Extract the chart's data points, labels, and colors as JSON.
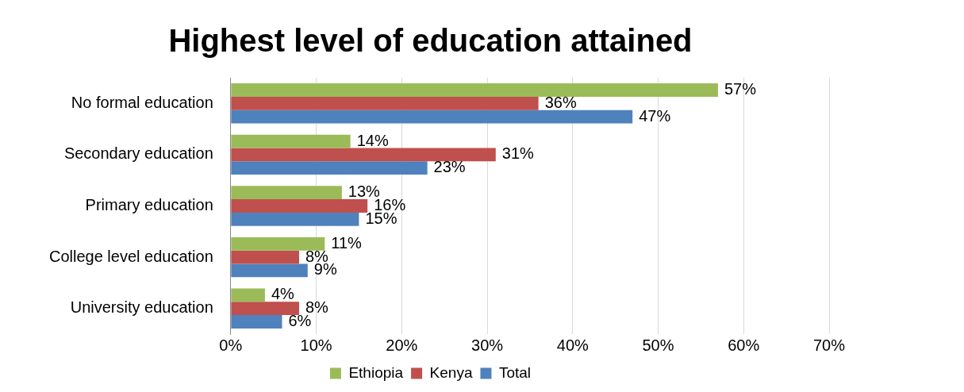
{
  "chart_data": {
    "type": "bar",
    "orientation": "horizontal",
    "title": "Highest level of education attained",
    "categories": [
      "No formal education",
      "Secondary education",
      "Primary education",
      "College level education",
      "University education"
    ],
    "series": [
      {
        "name": "Ethiopia",
        "color": "#9bbb59",
        "values": [
          57,
          14,
          13,
          11,
          4
        ],
        "value_labels": [
          "57%",
          "14%",
          "13%",
          "11%",
          "4%"
        ]
      },
      {
        "name": "Kenya",
        "color": "#c0504d",
        "values": [
          36,
          31,
          16,
          8,
          8
        ],
        "value_labels": [
          "36%",
          "31%",
          "16%",
          "8%",
          "8%"
        ]
      },
      {
        "name": "Total",
        "color": "#4f81bd",
        "values": [
          47,
          23,
          15,
          9,
          6
        ],
        "value_labels": [
          "47%",
          "23%",
          "15%",
          "9%",
          "6%"
        ]
      }
    ],
    "xlim": [
      0,
      70
    ],
    "xticks": [
      {
        "value": 0,
        "label": "0%"
      },
      {
        "value": 10,
        "label": "10%"
      },
      {
        "value": 20,
        "label": "20%"
      },
      {
        "value": 30,
        "label": "30%"
      },
      {
        "value": 40,
        "label": "40%"
      },
      {
        "value": 50,
        "label": "50%"
      },
      {
        "value": 60,
        "label": "60%"
      },
      {
        "value": 70,
        "label": "70%"
      }
    ],
    "grid": "x",
    "legend": "bottom"
  }
}
